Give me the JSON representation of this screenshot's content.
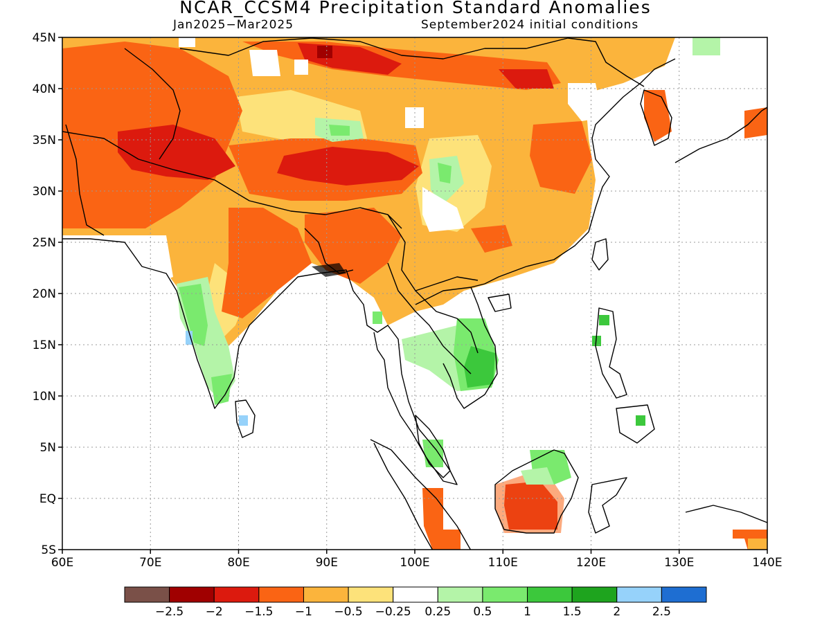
{
  "title": "NCAR_CCSM4 Precipitation Standard Anomalies",
  "subtitle_left": "Jan2025−Mar2025",
  "subtitle_right": "September2024 initial conditions",
  "map": {
    "lon_range": [
      60,
      140
    ],
    "lat_range": [
      -5,
      45
    ],
    "lon_ticks": [
      {
        "value": 60,
        "label": "60E"
      },
      {
        "value": 70,
        "label": "70E"
      },
      {
        "value": 80,
        "label": "80E"
      },
      {
        "value": 90,
        "label": "90E"
      },
      {
        "value": 100,
        "label": "100E"
      },
      {
        "value": 110,
        "label": "110E"
      },
      {
        "value": 120,
        "label": "120E"
      },
      {
        "value": 130,
        "label": "130E"
      },
      {
        "value": 140,
        "label": "140E"
      }
    ],
    "lat_ticks": [
      {
        "value": 45,
        "label": "45N"
      },
      {
        "value": 40,
        "label": "40N"
      },
      {
        "value": 35,
        "label": "35N"
      },
      {
        "value": 30,
        "label": "30N"
      },
      {
        "value": 25,
        "label": "25N"
      },
      {
        "value": 20,
        "label": "20N"
      },
      {
        "value": 15,
        "label": "15N"
      },
      {
        "value": 10,
        "label": "10N"
      },
      {
        "value": 5,
        "label": "5N"
      },
      {
        "value": 0,
        "label": "EQ"
      },
      {
        "value": -5,
        "label": "5S"
      }
    ],
    "gridlines": "dotted"
  },
  "legend": {
    "colors": [
      "#7a5048",
      "#a00000",
      "#dc1a0e",
      "#fa6414",
      "#fbb43c",
      "#fde27a",
      "#ffffff",
      "#b4f4a8",
      "#7aea6e",
      "#3cc83c",
      "#1ea41e",
      "#96d2fa",
      "#1e6ed2"
    ],
    "labels": [
      "−2.5",
      "−2",
      "−1.5",
      "−1",
      "−0.5",
      "−0.25",
      "0.25",
      "0.5",
      "1",
      "1.5",
      "2",
      "2.5"
    ]
  }
}
